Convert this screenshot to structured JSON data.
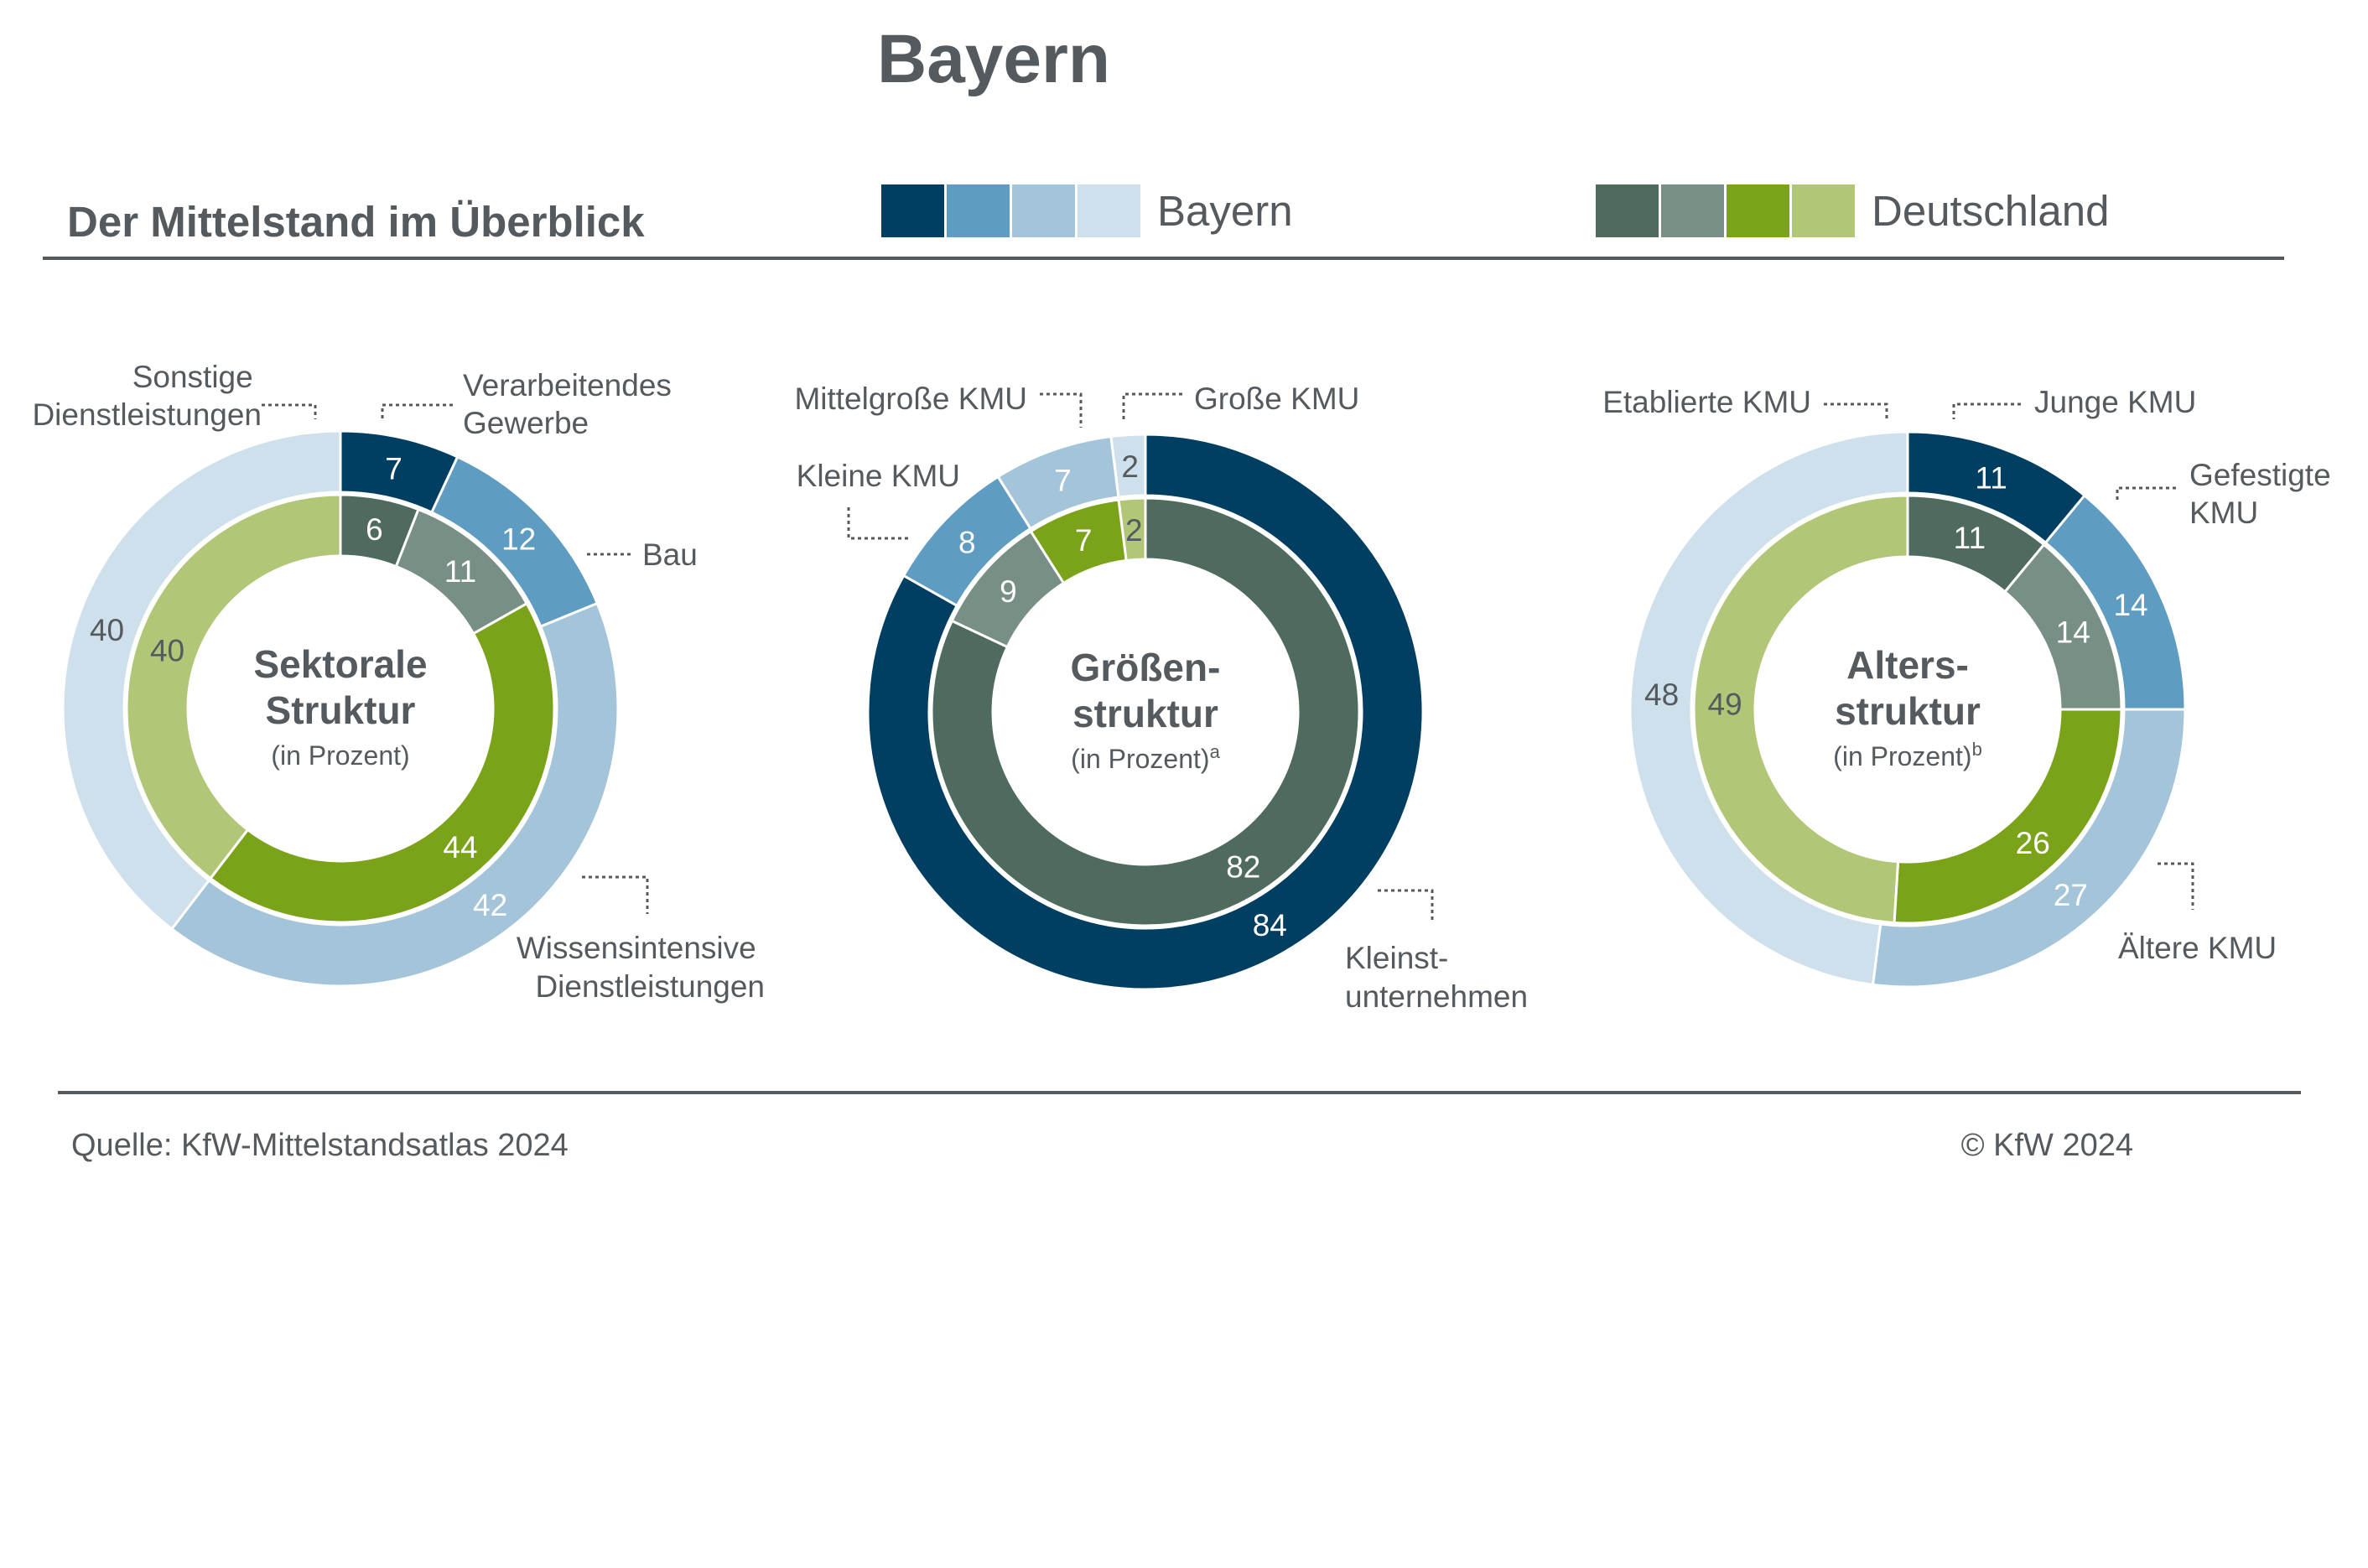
{
  "page": {
    "title": "Bayern",
    "subtitle": "Der Mittelstand im Überblick",
    "source": "Quelle: KfW-Mittelstandsatlas 2024",
    "copyright": "© KfW 2024"
  },
  "legend": [
    {
      "label": "Bayern",
      "colors": [
        "#003f62",
        "#5e9cc2",
        "#a3c4d9",
        "#cee0eb"
      ]
    },
    {
      "label": "Deutschland",
      "colors": [
        "#4f6b5d",
        "#778f84",
        "#7ba31a",
        "#b1c777"
      ]
    }
  ],
  "chart_data": [
    {
      "type": "donut",
      "center_label": [
        "Sektorale",
        "Struktur"
      ],
      "center_sub": "(in Prozent)",
      "center_sup": "",
      "categories": [
        "Verarbeitendes Gewerbe",
        "Bau",
        "Wissensintensive Dienstleistungen",
        "Sonstige Dienstleistungen"
      ],
      "series": [
        {
          "name": "Bayern",
          "ring": "outer",
          "values": [
            7,
            12,
            42,
            40
          ],
          "colors": [
            "#003f62",
            "#5e9cc2",
            "#a3c4d9",
            "#cee0eb"
          ],
          "label_colors": [
            "#ffffff",
            "#ffffff",
            "#ffffff",
            "#555a5e"
          ]
        },
        {
          "name": "Deutschland",
          "ring": "inner",
          "values": [
            6,
            11,
            44,
            40
          ],
          "colors": [
            "#4f6b5d",
            "#778f84",
            "#7ba31a",
            "#b1c777"
          ],
          "label_colors": [
            "#ffffff",
            "#ffffff",
            "#ffffff",
            "#555a5e"
          ]
        }
      ]
    },
    {
      "type": "donut",
      "center_label": [
        "Größen-",
        "struktur"
      ],
      "center_sub": "(in Prozent)",
      "center_sup": "a",
      "categories": [
        "Kleinst-unternehmen",
        "Kleine KMU",
        "Mittelgroße KMU",
        "Große KMU"
      ],
      "series": [
        {
          "name": "Bayern",
          "ring": "outer",
          "values": [
            84,
            8,
            7,
            2
          ],
          "colors": [
            "#003f62",
            "#5e9cc2",
            "#a3c4d9",
            "#cee0eb"
          ],
          "label_colors": [
            "#ffffff",
            "#ffffff",
            "#ffffff",
            "#555a5e"
          ]
        },
        {
          "name": "Deutschland",
          "ring": "inner",
          "values": [
            82,
            9,
            7,
            2
          ],
          "colors": [
            "#4f6b5d",
            "#778f84",
            "#7ba31a",
            "#b1c777"
          ],
          "label_colors": [
            "#ffffff",
            "#ffffff",
            "#ffffff",
            "#555a5e"
          ]
        }
      ]
    },
    {
      "type": "donut",
      "center_label": [
        "Alters-",
        "struktur"
      ],
      "center_sub": "(in Prozent)",
      "center_sup": "b",
      "categories": [
        "Junge KMU",
        "Gefestigte KMU",
        "Ältere KMU",
        "Etablierte KMU"
      ],
      "series": [
        {
          "name": "Bayern",
          "ring": "outer",
          "values": [
            11,
            14,
            27,
            48
          ],
          "colors": [
            "#003f62",
            "#5e9cc2",
            "#a3c4d9",
            "#cee0eb"
          ],
          "label_colors": [
            "#ffffff",
            "#ffffff",
            "#ffffff",
            "#555a5e"
          ]
        },
        {
          "name": "Deutschland",
          "ring": "inner",
          "values": [
            11,
            14,
            26,
            49
          ],
          "colors": [
            "#4f6b5d",
            "#778f84",
            "#7ba31a",
            "#b1c777"
          ],
          "label_colors": [
            "#ffffff",
            "#ffffff",
            "#ffffff",
            "#555a5e"
          ]
        }
      ]
    }
  ],
  "callouts": [
    {
      "chart": 0,
      "lines": [
        "Sonstige",
        "Dienstleistungen"
      ]
    },
    {
      "chart": 0,
      "lines": [
        "Verarbeitendes",
        "Gewerbe"
      ]
    },
    {
      "chart": 0,
      "lines": [
        "Bau"
      ]
    },
    {
      "chart": 0,
      "lines": [
        "Wissensintensive",
        "Dienstleistungen"
      ]
    },
    {
      "chart": 1,
      "lines": [
        "Mittelgroße KMU"
      ]
    },
    {
      "chart": 1,
      "lines": [
        "Große KMU"
      ]
    },
    {
      "chart": 1,
      "lines": [
        "Kleine KMU"
      ]
    },
    {
      "chart": 1,
      "lines": [
        "Kleinst-",
        "unternehmen"
      ]
    },
    {
      "chart": 2,
      "lines": [
        "Etablierte KMU"
      ]
    },
    {
      "chart": 2,
      "lines": [
        "Junge KMU"
      ]
    },
    {
      "chart": 2,
      "lines": [
        "Gefestigte",
        "KMU"
      ]
    },
    {
      "chart": 2,
      "lines": [
        "Ältere KMU"
      ]
    }
  ]
}
